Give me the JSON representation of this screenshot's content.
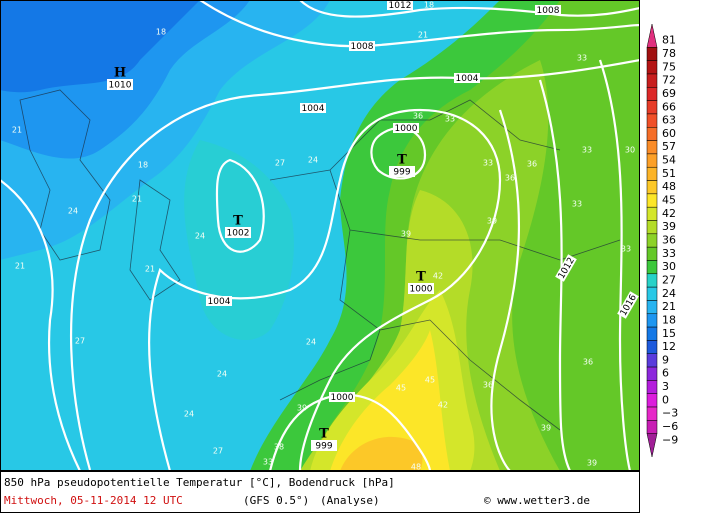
{
  "map": {
    "pressure_centers": [
      {
        "symbol": "H",
        "pressure": 1010
      },
      {
        "symbol": "T",
        "pressure": 999
      },
      {
        "symbol": "T",
        "pressure": 1002
      },
      {
        "symbol": "T",
        "pressure": 1000
      },
      {
        "symbol": "T",
        "pressure": 999
      }
    ],
    "isobar_labels": [
      1012,
      1008,
      1008,
      1004,
      1004,
      1000,
      1004,
      1000,
      1012,
      1016
    ],
    "temperature_labels": [
      18,
      18,
      21,
      21,
      18,
      21,
      24,
      21,
      21,
      24,
      27,
      24,
      36,
      33,
      33,
      36,
      36,
      33,
      30,
      33,
      39,
      39,
      42,
      33,
      33,
      27,
      24,
      24,
      24,
      27,
      39,
      45,
      45,
      42,
      39,
      36,
      38,
      33,
      48,
      39,
      36
    ]
  },
  "legend": {
    "ticks": [
      81,
      78,
      75,
      72,
      69,
      66,
      63,
      60,
      57,
      54,
      51,
      48,
      45,
      42,
      39,
      36,
      33,
      30,
      27,
      24,
      21,
      18,
      15,
      12,
      9,
      6,
      3,
      0,
      {
        "value": -3,
        "label": "−3"
      },
      {
        "value": -6,
        "label": "−6"
      },
      {
        "value": -9,
        "label": "−9"
      }
    ],
    "colors": [
      "#e0307e",
      "#a01010",
      "#b41414",
      "#c81e1e",
      "#dc2828",
      "#e63c28",
      "#f05028",
      "#f56e28",
      "#fa8c28",
      "#fca028",
      "#fcb428",
      "#fcc828",
      "#fce628",
      "#d4e62a",
      "#b4dc28",
      "#8cd228",
      "#64c828",
      "#3cc83c",
      "#28d2c8",
      "#28c8e6",
      "#28b4f0",
      "#1e96f0",
      "#1478e6",
      "#1e5adc",
      "#5a3cdc",
      "#8c28dc",
      "#b41edc",
      "#dc1edc",
      "#e628c8",
      "#c81eb4",
      "#a01e96"
    ]
  },
  "footer": {
    "title": "850 hPa pseudopotentielle Temperatur [°C], Bodendruck [hPa]",
    "date": "Mittwoch, 05-11-2014  12 UTC",
    "model": "(GFS 0.5°)",
    "analysis": "(Analyse)",
    "credit": "© www.wetter3.de"
  }
}
